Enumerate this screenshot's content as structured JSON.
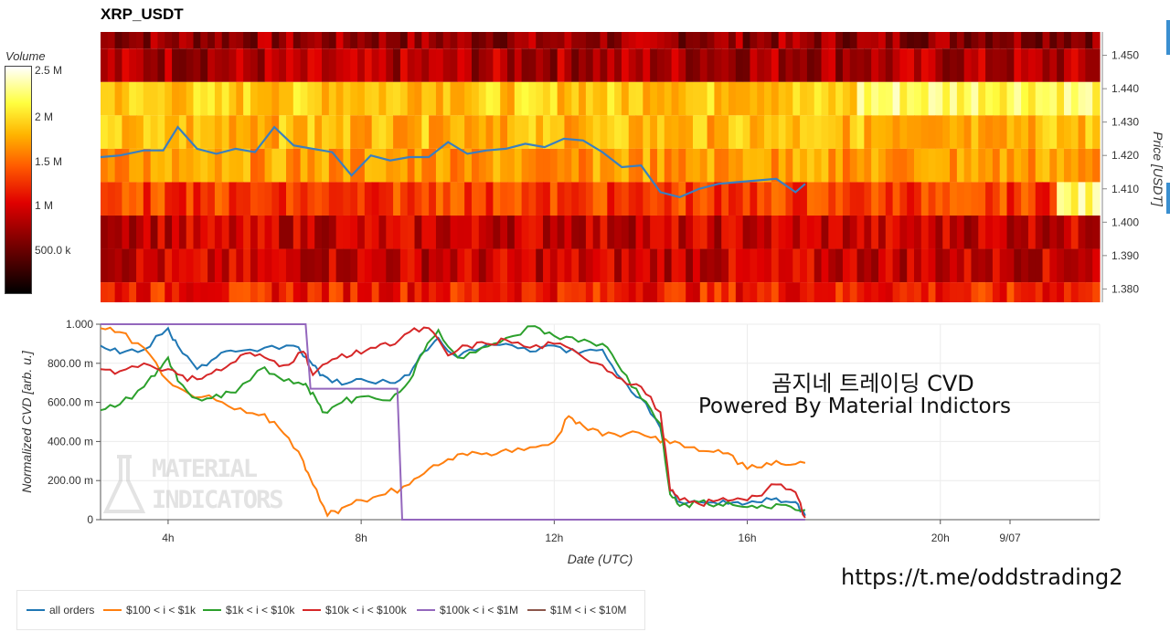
{
  "title": "XRP_USDT",
  "colorbar": {
    "title": "Volume",
    "ticks": [
      {
        "label": "2.5 M",
        "value": 2500000
      },
      {
        "label": "2 M",
        "value": 2000000
      },
      {
        "label": "1.5 M",
        "value": 1500000
      },
      {
        "label": "1 M",
        "value": 1000000
      },
      {
        "label": "500.0 k",
        "value": 500000
      }
    ],
    "colors": [
      "#000000",
      "#7a0000",
      "#e00000",
      "#ff5a00",
      "#ffb400",
      "#ffff40",
      "#ffffff"
    ]
  },
  "annotation": {
    "line1": "곰지네 트레이딩 CVD",
    "line2": "Powered By Material Indictors"
  },
  "link": "https://t.me/oddstrading2",
  "watermark": {
    "line1": "MATERIAL",
    "line2": "INDICATORS"
  },
  "chart_data": [
    {
      "type": "heatmap",
      "title": "XRP_USDT",
      "ylabel": "Price [USDT]",
      "y_ticks": [
        "1.450",
        "1.440",
        "1.430",
        "1.420",
        "1.410",
        "1.400",
        "1.390",
        "1.380"
      ],
      "ylim": [
        1.376,
        1.457
      ],
      "xlim": [
        2.6,
        23.3
      ],
      "price_bands": [
        {
          "from": 1.452,
          "to": 1.457,
          "level": 0.22
        },
        {
          "from": 1.442,
          "to": 1.452,
          "level": 0.25
        },
        {
          "from": 1.432,
          "to": 1.442,
          "level": 0.72
        },
        {
          "from": 1.422,
          "to": 1.432,
          "level": 0.68
        },
        {
          "from": 1.412,
          "to": 1.422,
          "level": 0.62
        },
        {
          "from": 1.402,
          "to": 1.412,
          "level": 0.45
        },
        {
          "from": 1.392,
          "to": 1.402,
          "level": 0.3
        },
        {
          "from": 1.382,
          "to": 1.392,
          "level": 0.3
        },
        {
          "from": 1.376,
          "to": 1.382,
          "level": 0.4
        }
      ],
      "price_line": {
        "color": "#3a7fc0",
        "x": [
          2.6,
          3.0,
          3.5,
          3.9,
          4.2,
          4.6,
          5.0,
          5.4,
          5.8,
          6.2,
          6.6,
          7.0,
          7.4,
          7.8,
          8.2,
          8.6,
          9.0,
          9.4,
          9.8,
          10.2,
          10.6,
          11.0,
          11.4,
          11.8,
          12.2,
          12.6,
          13.0,
          13.4,
          13.8,
          14.2,
          14.6,
          15.0,
          15.4,
          15.8,
          16.2,
          16.6,
          17.0,
          17.2
        ],
        "y": [
          1.4195,
          1.42,
          1.4215,
          1.4215,
          1.4285,
          1.422,
          1.4205,
          1.422,
          1.421,
          1.4285,
          1.423,
          1.422,
          1.421,
          1.414,
          1.42,
          1.4185,
          1.4195,
          1.4195,
          1.424,
          1.4205,
          1.4215,
          1.422,
          1.4235,
          1.4225,
          1.425,
          1.4245,
          1.421,
          1.4165,
          1.417,
          1.409,
          1.4075,
          1.41,
          1.4115,
          1.412,
          1.4125,
          1.413,
          1.409,
          1.4115
        ]
      }
    },
    {
      "type": "line",
      "xlabel": "Date (UTC)",
      "ylabel": "Normalized CVD [arb. u.]",
      "xlim": [
        2.6,
        23.3
      ],
      "ylim": [
        0,
        1.0
      ],
      "x_ticks": [
        {
          "label": "4h",
          "value": 4
        },
        {
          "label": "8h",
          "value": 8
        },
        {
          "label": "12h",
          "value": 12
        },
        {
          "label": "16h",
          "value": 16
        },
        {
          "label": "20h",
          "value": 20
        },
        {
          "label": "9/07",
          "value": 24
        }
      ],
      "y_ticks": [
        {
          "label": "1.000",
          "value": 1.0
        },
        {
          "label": "800.00 m",
          "value": 0.8
        },
        {
          "label": "600.00 m",
          "value": 0.6
        },
        {
          "label": "400.00 m",
          "value": 0.4
        },
        {
          "label": "200.00 m",
          "value": 0.2
        },
        {
          "label": "0",
          "value": 0
        }
      ],
      "grid": true,
      "legend_position": "bottom-left",
      "series": [
        {
          "name": "all orders",
          "color": "#1f77b4",
          "x": [
            2.6,
            3.0,
            3.5,
            4.0,
            4.2,
            4.6,
            5.0,
            5.4,
            6.0,
            6.6,
            7.0,
            7.2,
            7.6,
            8.0,
            8.6,
            9.0,
            9.3,
            9.6,
            10.0,
            10.5,
            11.0,
            11.5,
            12.0,
            12.5,
            13.0,
            13.4,
            13.8,
            14.2,
            14.4,
            14.6,
            15.0,
            15.4,
            15.8,
            16.2,
            16.6,
            17.0,
            17.2
          ],
          "y": [
            0.89,
            0.85,
            0.87,
            0.98,
            0.89,
            0.77,
            0.83,
            0.86,
            0.88,
            0.89,
            0.79,
            0.74,
            0.69,
            0.72,
            0.7,
            0.74,
            0.86,
            0.93,
            0.83,
            0.88,
            0.9,
            0.86,
            0.89,
            0.85,
            0.87,
            0.72,
            0.62,
            0.47,
            0.15,
            0.09,
            0.09,
            0.08,
            0.09,
            0.09,
            0.11,
            0.09,
            0.02
          ]
        },
        {
          "name": "$100 < i < $1k",
          "color": "#ff7f0e",
          "x": [
            2.6,
            3.0,
            3.5,
            4.0,
            4.4,
            5.0,
            5.5,
            6.0,
            6.4,
            6.8,
            7.0,
            7.3,
            7.6,
            8.0,
            8.5,
            9.0,
            9.4,
            9.8,
            10.2,
            10.6,
            11.0,
            11.5,
            12.0,
            12.3,
            12.6,
            13.0,
            13.5,
            14.0,
            14.4,
            14.8,
            15.2,
            15.6,
            16.0,
            16.4,
            16.8,
            17.2
          ],
          "y": [
            0.98,
            0.96,
            0.88,
            0.71,
            0.65,
            0.61,
            0.57,
            0.54,
            0.44,
            0.3,
            0.18,
            0.02,
            0.06,
            0.1,
            0.13,
            0.18,
            0.26,
            0.31,
            0.33,
            0.34,
            0.36,
            0.37,
            0.4,
            0.53,
            0.48,
            0.43,
            0.44,
            0.42,
            0.39,
            0.37,
            0.35,
            0.34,
            0.26,
            0.29,
            0.28,
            0.29
          ]
        },
        {
          "name": "$1k < i < $10k",
          "color": "#2ca02c",
          "x": [
            2.6,
            3.0,
            3.5,
            3.8,
            4.0,
            4.2,
            4.6,
            5.0,
            5.4,
            6.0,
            6.4,
            6.8,
            7.0,
            7.2,
            7.6,
            8.0,
            8.6,
            9.0,
            9.3,
            9.6,
            10.0,
            10.5,
            11.0,
            11.6,
            12.0,
            12.5,
            13.0,
            13.4,
            13.8,
            14.2,
            14.4,
            14.6,
            15.0,
            15.4,
            15.8,
            16.2,
            16.6,
            17.0,
            17.2
          ],
          "y": [
            0.56,
            0.59,
            0.68,
            0.77,
            0.83,
            0.71,
            0.62,
            0.64,
            0.65,
            0.78,
            0.71,
            0.69,
            0.65,
            0.55,
            0.6,
            0.63,
            0.61,
            0.71,
            0.86,
            0.97,
            0.83,
            0.88,
            0.93,
            0.99,
            0.94,
            0.91,
            0.9,
            0.76,
            0.62,
            0.49,
            0.13,
            0.07,
            0.09,
            0.08,
            0.07,
            0.06,
            0.08,
            0.05,
            0.05
          ]
        },
        {
          "name": "$10k < i < $100k",
          "color": "#d62728",
          "x": [
            2.6,
            3.0,
            3.5,
            4.0,
            4.4,
            4.8,
            5.2,
            5.6,
            6.0,
            6.4,
            6.8,
            7.0,
            7.4,
            7.8,
            8.2,
            8.6,
            9.0,
            9.4,
            9.8,
            10.2,
            10.6,
            11.0,
            11.5,
            12.0,
            12.5,
            13.0,
            13.4,
            13.8,
            14.2,
            14.4,
            14.6,
            15.0,
            15.4,
            15.8,
            16.2,
            16.6,
            17.0,
            17.2
          ],
          "y": [
            0.77,
            0.76,
            0.8,
            0.77,
            0.71,
            0.74,
            0.78,
            0.85,
            0.83,
            0.79,
            0.86,
            0.74,
            0.82,
            0.84,
            0.88,
            0.89,
            0.96,
            0.98,
            0.84,
            0.89,
            0.9,
            0.92,
            0.88,
            0.9,
            0.85,
            0.79,
            0.72,
            0.68,
            0.55,
            0.15,
            0.1,
            0.08,
            0.1,
            0.11,
            0.12,
            0.18,
            0.14,
            0.01
          ]
        },
        {
          "name": "$100k < i < $1M",
          "color": "#9467bd",
          "x": [
            2.6,
            6.85,
            6.95,
            8.75,
            8.85,
            17.2
          ],
          "y": [
            1.0,
            1.0,
            0.67,
            0.67,
            0.0,
            0.0
          ]
        },
        {
          "name": "$1M < i < $10M",
          "color": "#8c564b",
          "x": [],
          "y": []
        }
      ]
    }
  ]
}
